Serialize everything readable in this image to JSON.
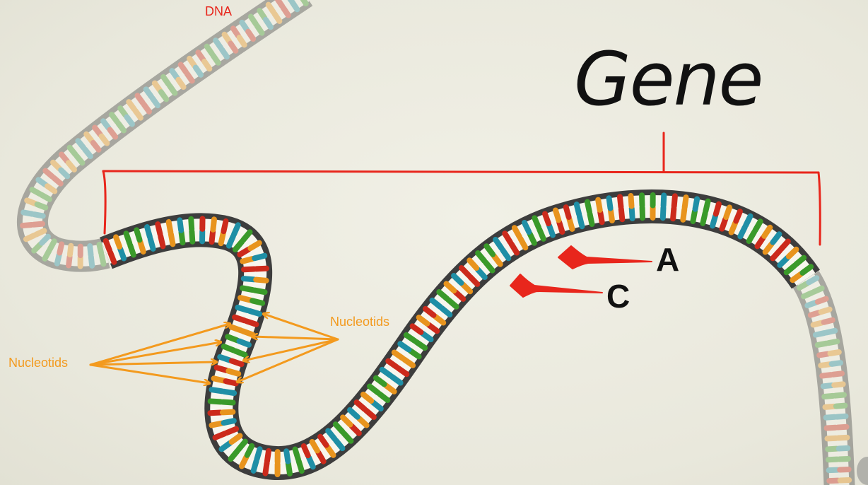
{
  "labels": {
    "dna": "DNA",
    "gene": "Gene",
    "a": "A",
    "c": "C",
    "nucleotids_left": "Nucleotids",
    "nucleotids_right": "Nucleotids"
  },
  "colors": {
    "background": "#ecebe0",
    "strand": "#3d3d3d",
    "rung": "#f7f6ee",
    "annotation_red": "#e8261c",
    "annotation_orange": "#f39a1e",
    "base_red": "#cc2a1c",
    "base_teal": "#1f8fa6",
    "base_green": "#3a9a2a",
    "base_orange": "#e8941e"
  }
}
